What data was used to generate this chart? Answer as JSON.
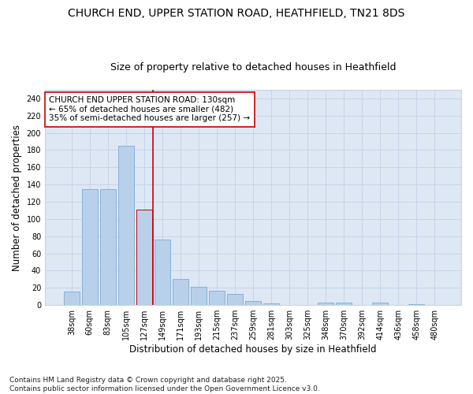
{
  "title_line1": "CHURCH END, UPPER STATION ROAD, HEATHFIELD, TN21 8DS",
  "title_line2": "Size of property relative to detached houses in Heathfield",
  "xlabel": "Distribution of detached houses by size in Heathfield",
  "ylabel": "Number of detached properties",
  "categories": [
    "38sqm",
    "60sqm",
    "83sqm",
    "105sqm",
    "127sqm",
    "149sqm",
    "171sqm",
    "193sqm",
    "215sqm",
    "237sqm",
    "259sqm",
    "281sqm",
    "303sqm",
    "325sqm",
    "348sqm",
    "370sqm",
    "392sqm",
    "414sqm",
    "436sqm",
    "458sqm",
    "480sqm"
  ],
  "values": [
    16,
    135,
    135,
    185,
    111,
    76,
    30,
    21,
    17,
    13,
    5,
    2,
    0,
    0,
    3,
    3,
    0,
    3,
    0,
    1,
    0
  ],
  "bar_color": "#b8d0ea",
  "bar_edge_color": "#8ab0d8",
  "highlight_bar_index": 4,
  "highlight_bar_color": "#b8d0ea",
  "highlight_bar_edge_color": "#cc0000",
  "vline_color": "#cc0000",
  "annotation_text": "CHURCH END UPPER STATION ROAD: 130sqm\n← 65% of detached houses are smaller (482)\n35% of semi-detached houses are larger (257) →",
  "annotation_box_color": "#ffffff",
  "annotation_box_edge_color": "#cc0000",
  "footnote": "Contains HM Land Registry data © Crown copyright and database right 2025.\nContains public sector information licensed under the Open Government Licence v3.0.",
  "ylim": [
    0,
    250
  ],
  "yticks": [
    0,
    20,
    40,
    60,
    80,
    100,
    120,
    140,
    160,
    180,
    200,
    220,
    240
  ],
  "grid_color": "#c8d4e8",
  "plot_bg_color": "#dde8f4",
  "fig_bg_color": "#ffffff",
  "title_fontsize": 10,
  "subtitle_fontsize": 9,
  "axis_label_fontsize": 8.5,
  "tick_fontsize": 7,
  "annotation_fontsize": 7.5,
  "footnote_fontsize": 6.5
}
